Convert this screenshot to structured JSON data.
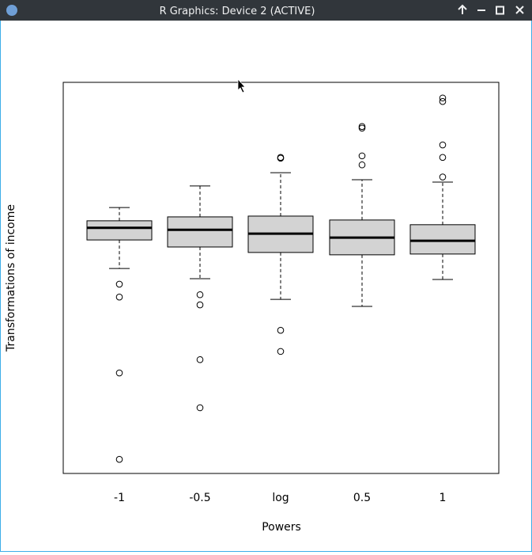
{
  "window": {
    "title": "R Graphics: Device 2 (ACTIVE)"
  },
  "chart_data": {
    "type": "box",
    "x_label": "Powers",
    "y_label": "Transformations of income",
    "categories": [
      "-1",
      "-0.5",
      "log",
      "0.5",
      "1"
    ],
    "color": "#d3d3d3",
    "ylim": [
      0,
      100
    ],
    "boxes": [
      {
        "whisker_low": 52.4,
        "q1": 59.7,
        "median": 62.8,
        "q3": 64.6,
        "whisker_high": 68.0,
        "outliers": [
          48.4,
          45.1,
          25.7,
          3.6
        ]
      },
      {
        "whisker_low": 49.8,
        "q1": 57.9,
        "median": 62.3,
        "q3": 65.6,
        "whisker_high": 73.5,
        "outliers": [
          45.7,
          43.1,
          29.1,
          16.8
        ]
      },
      {
        "whisker_low": 44.5,
        "q1": 56.5,
        "median": 61.3,
        "q3": 65.8,
        "whisker_high": 76.9,
        "outliers": [
          80.8,
          80.6,
          36.6,
          31.2
        ]
      },
      {
        "whisker_low": 42.7,
        "q1": 55.9,
        "median": 60.3,
        "q3": 64.8,
        "whisker_high": 75.1,
        "outliers": [
          88.7,
          88.3,
          81.2,
          78.9
        ]
      },
      {
        "whisker_low": 49.6,
        "q1": 56.1,
        "median": 59.5,
        "q3": 63.6,
        "whisker_high": 74.5,
        "outliers": [
          96.0,
          95.1,
          84.0,
          80.8,
          75.8
        ]
      }
    ]
  }
}
